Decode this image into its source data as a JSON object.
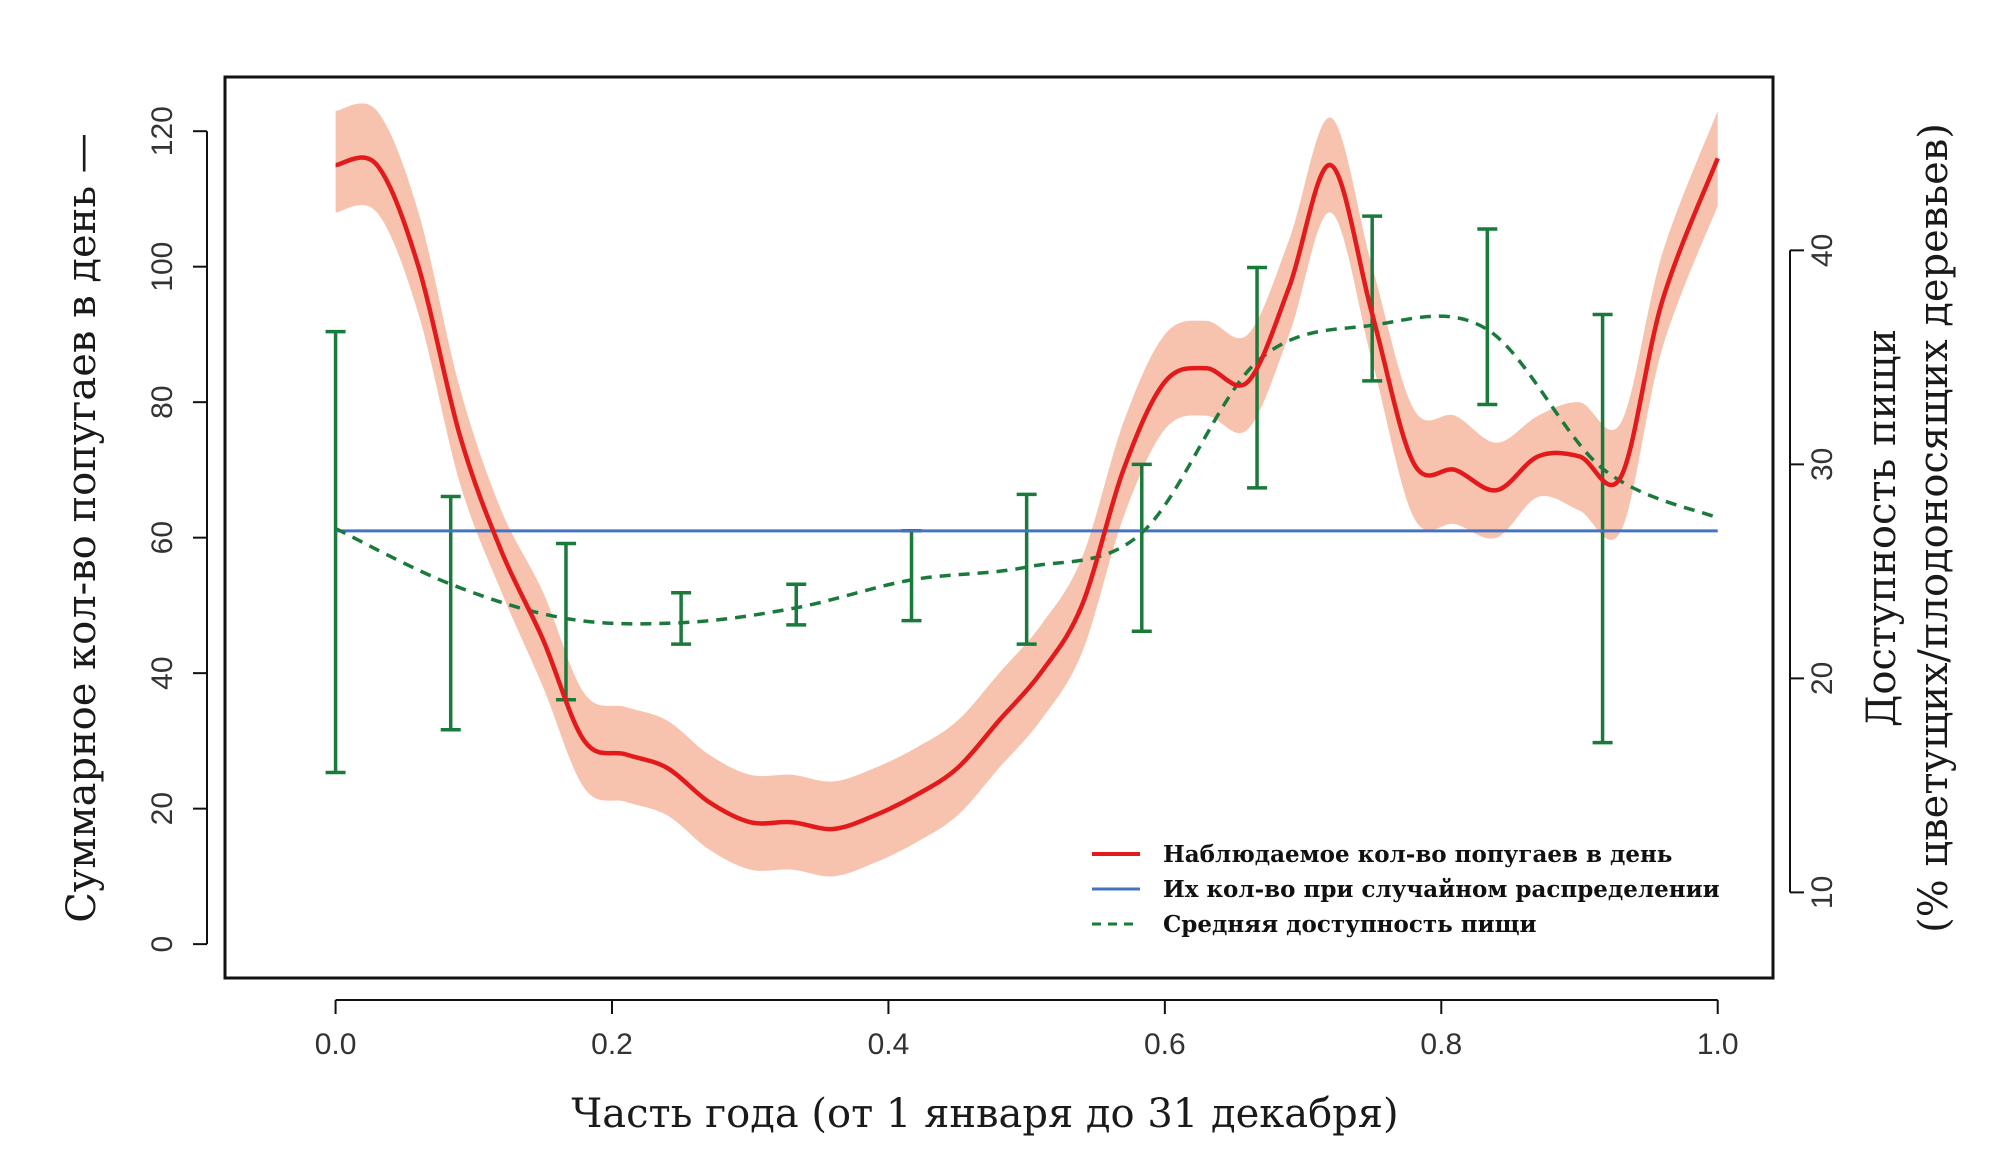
{
  "chart_data": {
    "type": "line",
    "xlabel": "Часть года (от 1 января до 31 декабря)",
    "ylabel_left": "Суммарное кол-во попугаев в день —",
    "ylabel_right_line1": "Доступность пищи",
    "ylabel_right_line2": "(% цветущих/плодоносящих деревьев)",
    "xlim": [
      -0.08,
      1.04
    ],
    "ylim_left": [
      -5,
      128
    ],
    "ylim_right": [
      6,
      48.1
    ],
    "x_ticks": [
      "0.0",
      "0.2",
      "0.4",
      "0.6",
      "0.8",
      "1.0"
    ],
    "y_left_ticks": [
      "0",
      "20",
      "40",
      "60",
      "80",
      "100",
      "120"
    ],
    "y_right_ticks": [
      "10",
      "20",
      "30",
      "40"
    ],
    "legend_position": "bottom-right",
    "series": [
      {
        "name": "Наблюдаемое кол-во попугаев в день",
        "axis": "left",
        "color": "#e31a1c",
        "style": "solid",
        "band_color": "#f7b8a0",
        "x": [
          0.0,
          0.03,
          0.06,
          0.09,
          0.12,
          0.15,
          0.18,
          0.21,
          0.24,
          0.27,
          0.3,
          0.33,
          0.36,
          0.39,
          0.42,
          0.45,
          0.48,
          0.51,
          0.54,
          0.57,
          0.6,
          0.63,
          0.66,
          0.69,
          0.72,
          0.75,
          0.78,
          0.81,
          0.84,
          0.87,
          0.9,
          0.93,
          0.96,
          1.0
        ],
        "y": [
          115,
          115,
          100,
          75,
          58,
          45,
          30,
          28,
          26,
          21,
          18,
          18,
          17,
          19,
          22,
          26,
          33,
          40,
          50,
          70,
          83,
          85,
          83,
          97,
          115,
          93,
          71,
          70,
          67,
          72,
          72,
          69,
          95,
          116
        ],
        "band_lower": [
          108,
          108,
          93,
          68,
          52,
          38,
          23,
          21,
          19,
          14,
          11,
          11,
          10,
          12,
          15,
          19,
          26,
          33,
          43,
          63,
          76,
          78,
          76,
          90,
          108,
          86,
          63,
          62,
          60,
          66,
          64,
          61,
          88,
          109
        ],
        "band_upper": [
          123,
          123,
          108,
          82,
          64,
          52,
          37,
          35,
          33,
          28,
          25,
          25,
          24,
          26,
          29,
          33,
          40,
          47,
          57,
          77,
          90,
          92,
          90,
          104,
          122,
          100,
          79,
          78,
          74,
          78,
          80,
          77,
          102,
          123
        ]
      },
      {
        "name": "Их кол-во при случайном распределении",
        "axis": "left",
        "color": "#4472c4",
        "style": "solid",
        "x": [
          0.0,
          1.0
        ],
        "y": [
          61,
          61
        ]
      },
      {
        "name": "Средняя доступность пищи",
        "axis": "right",
        "color": "#1a7a3c",
        "style": "dashed",
        "x": [
          0.0,
          0.0833,
          0.1667,
          0.25,
          0.3333,
          0.4167,
          0.5,
          0.5833,
          0.6667,
          0.75,
          0.8333,
          0.9167,
          1.0
        ],
        "y": [
          27.0,
          24.4,
          22.8,
          22.6,
          23.3,
          24.6,
          25.2,
          26.8,
          34.8,
          36.5,
          36.3,
          29.8,
          27.5
        ],
        "err_lower": [
          15.6,
          17.6,
          19.0,
          21.6,
          22.5,
          22.7,
          21.6,
          22.2,
          28.9,
          33.9,
          32.8,
          17.0,
          null
        ],
        "err_upper": [
          36.2,
          28.5,
          26.3,
          24.0,
          24.4,
          26.9,
          28.6,
          30.0,
          39.2,
          41.6,
          41.0,
          37.0,
          null
        ]
      }
    ]
  }
}
